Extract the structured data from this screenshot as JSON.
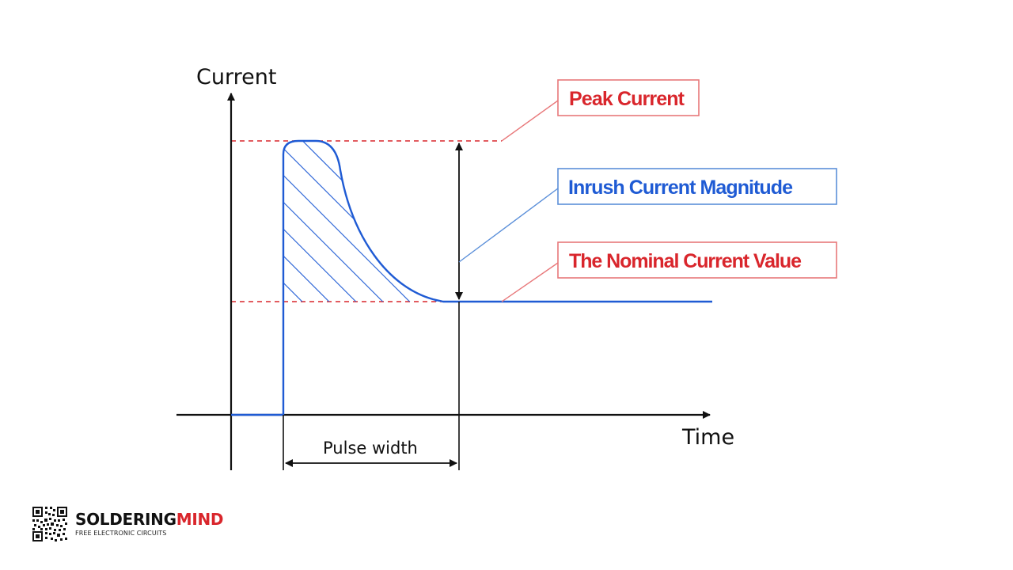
{
  "axes": {
    "y_label": "Current",
    "x_label": "Time"
  },
  "annotations": {
    "pulse_width": "Pulse width"
  },
  "callouts": [
    {
      "id": "peak",
      "label": "Peak Current",
      "color": "#d9262c",
      "border": "#e8787a"
    },
    {
      "id": "magnitude",
      "label": "Inrush Current Magnitude",
      "color": "#1f5bd4",
      "border": "#5b8fd9"
    },
    {
      "id": "nominal",
      "label": "The Nominal Current Value",
      "color": "#d9262c",
      "border": "#e8787a"
    }
  ],
  "colors": {
    "curve": "#1f5bd4",
    "dashed_guides": "#d9262c",
    "axes": "#111111"
  },
  "brand": {
    "name_part1": "SOLDERING",
    "name_part2": "MIND",
    "tagline": "FREE ELECTRONIC CIRCUITS",
    "qr_icon": "qr-code-icon"
  }
}
